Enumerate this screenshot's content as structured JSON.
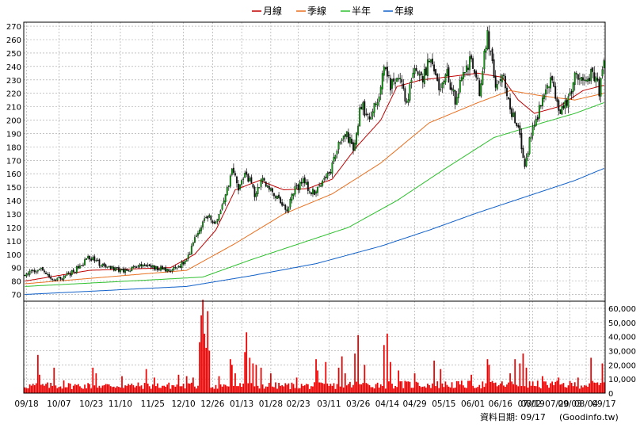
{
  "chart_data": [
    {
      "type": "candlestick",
      "legend_position": "top-center",
      "legend": [
        {
          "name": "月線",
          "color": "#c00000"
        },
        {
          "name": "季線",
          "color": "#e87020"
        },
        {
          "name": "半年",
          "color": "#2ec02e"
        },
        {
          "name": "年線",
          "color": "#1060c8"
        }
      ],
      "y_ticks": [
        70,
        80,
        90,
        100,
        110,
        120,
        130,
        140,
        150,
        160,
        170,
        180,
        190,
        200,
        210,
        220,
        230,
        240,
        250,
        260,
        270
      ],
      "ylim": [
        65,
        273
      ],
      "grid": true,
      "price_anchors": [
        {
          "t": 0,
          "p": 85
        },
        {
          "t": 10,
          "p": 89
        },
        {
          "t": 18,
          "p": 80
        },
        {
          "t": 30,
          "p": 87
        },
        {
          "t": 40,
          "p": 98
        },
        {
          "t": 50,
          "p": 90
        },
        {
          "t": 62,
          "p": 88
        },
        {
          "t": 75,
          "p": 92
        },
        {
          "t": 90,
          "p": 87
        },
        {
          "t": 100,
          "p": 95
        },
        {
          "t": 108,
          "p": 120
        },
        {
          "t": 113,
          "p": 128
        },
        {
          "t": 118,
          "p": 122
        },
        {
          "t": 123,
          "p": 138
        },
        {
          "t": 128,
          "p": 162
        },
        {
          "t": 132,
          "p": 150
        },
        {
          "t": 137,
          "p": 160
        },
        {
          "t": 142,
          "p": 145
        },
        {
          "t": 147,
          "p": 157
        },
        {
          "t": 152,
          "p": 148
        },
        {
          "t": 157,
          "p": 142
        },
        {
          "t": 162,
          "p": 133
        },
        {
          "t": 167,
          "p": 148
        },
        {
          "t": 172,
          "p": 155
        },
        {
          "t": 177,
          "p": 145
        },
        {
          "t": 183,
          "p": 150
        },
        {
          "t": 188,
          "p": 160
        },
        {
          "t": 193,
          "p": 178
        },
        {
          "t": 198,
          "p": 190
        },
        {
          "t": 203,
          "p": 180
        },
        {
          "t": 208,
          "p": 212
        },
        {
          "t": 213,
          "p": 200
        },
        {
          "t": 218,
          "p": 215
        },
        {
          "t": 222,
          "p": 240
        },
        {
          "t": 226,
          "p": 225
        },
        {
          "t": 231,
          "p": 232
        },
        {
          "t": 236,
          "p": 212
        },
        {
          "t": 241,
          "p": 238
        },
        {
          "t": 246,
          "p": 230
        },
        {
          "t": 251,
          "p": 250
        },
        {
          "t": 256,
          "p": 220
        },
        {
          "t": 261,
          "p": 235
        },
        {
          "t": 266,
          "p": 215
        },
        {
          "t": 271,
          "p": 238
        },
        {
          "t": 276,
          "p": 245
        },
        {
          "t": 281,
          "p": 222
        },
        {
          "t": 286,
          "p": 265
        },
        {
          "t": 291,
          "p": 225
        },
        {
          "t": 296,
          "p": 232
        },
        {
          "t": 301,
          "p": 205
        },
        {
          "t": 306,
          "p": 190
        },
        {
          "t": 309,
          "p": 165
        },
        {
          "t": 312,
          "p": 185
        },
        {
          "t": 316,
          "p": 200
        },
        {
          "t": 321,
          "p": 222
        },
        {
          "t": 326,
          "p": 230
        },
        {
          "t": 331,
          "p": 205
        },
        {
          "t": 336,
          "p": 215
        },
        {
          "t": 341,
          "p": 235
        },
        {
          "t": 346,
          "p": 228
        },
        {
          "t": 351,
          "p": 237
        },
        {
          "t": 355,
          "p": 222
        },
        {
          "t": 358,
          "p": 240
        }
      ],
      "ma_anchors": {
        "月線": [
          {
            "t": 0,
            "p": 80
          },
          {
            "t": 40,
            "p": 88
          },
          {
            "t": 90,
            "p": 90
          },
          {
            "t": 105,
            "p": 100
          },
          {
            "t": 118,
            "p": 118
          },
          {
            "t": 130,
            "p": 148
          },
          {
            "t": 145,
            "p": 155
          },
          {
            "t": 160,
            "p": 148
          },
          {
            "t": 175,
            "p": 149
          },
          {
            "t": 190,
            "p": 156
          },
          {
            "t": 205,
            "p": 180
          },
          {
            "t": 220,
            "p": 200
          },
          {
            "t": 230,
            "p": 225
          },
          {
            "t": 245,
            "p": 230
          },
          {
            "t": 260,
            "p": 232
          },
          {
            "t": 280,
            "p": 235
          },
          {
            "t": 295,
            "p": 232
          },
          {
            "t": 305,
            "p": 215
          },
          {
            "t": 315,
            "p": 205
          },
          {
            "t": 330,
            "p": 210
          },
          {
            "t": 345,
            "p": 222
          },
          {
            "t": 358,
            "p": 226
          }
        ],
        "季線": [
          {
            "t": 0,
            "p": 78
          },
          {
            "t": 60,
            "p": 84
          },
          {
            "t": 100,
            "p": 88
          },
          {
            "t": 130,
            "p": 108
          },
          {
            "t": 160,
            "p": 130
          },
          {
            "t": 190,
            "p": 145
          },
          {
            "t": 220,
            "p": 168
          },
          {
            "t": 250,
            "p": 198
          },
          {
            "t": 280,
            "p": 213
          },
          {
            "t": 300,
            "p": 222
          },
          {
            "t": 320,
            "p": 218
          },
          {
            "t": 340,
            "p": 215
          },
          {
            "t": 358,
            "p": 220
          }
        ],
        "半年": [
          {
            "t": 0,
            "p": 76
          },
          {
            "t": 80,
            "p": 81
          },
          {
            "t": 110,
            "p": 83
          },
          {
            "t": 140,
            "p": 96
          },
          {
            "t": 170,
            "p": 108
          },
          {
            "t": 200,
            "p": 120
          },
          {
            "t": 230,
            "p": 140
          },
          {
            "t": 260,
            "p": 164
          },
          {
            "t": 290,
            "p": 187
          },
          {
            "t": 320,
            "p": 198
          },
          {
            "t": 340,
            "p": 205
          },
          {
            "t": 358,
            "p": 213
          }
        ],
        "年線": [
          {
            "t": 0,
            "p": 70
          },
          {
            "t": 100,
            "p": 76
          },
          {
            "t": 140,
            "p": 84
          },
          {
            "t": 180,
            "p": 93
          },
          {
            "t": 220,
            "p": 106
          },
          {
            "t": 250,
            "p": 118
          },
          {
            "t": 280,
            "p": 131
          },
          {
            "t": 310,
            "p": 143
          },
          {
            "t": 340,
            "p": 155
          },
          {
            "t": 358,
            "p": 164
          }
        ]
      }
    },
    {
      "type": "bar",
      "name": "volume",
      "y_ticks": [
        0,
        10000,
        20000,
        30000,
        40000,
        50000,
        60000
      ],
      "y_tick_labels": [
        "0",
        "10,000",
        "20,000",
        "30,000",
        "40,000",
        "50,000",
        "60,000"
      ],
      "ylim": [
        0,
        65000
      ],
      "grid": true,
      "base_level": 5500,
      "spikes": [
        {
          "t": 8,
          "v": 27000
        },
        {
          "t": 9,
          "v": 13000
        },
        {
          "t": 18,
          "v": 18000
        },
        {
          "t": 24,
          "v": 9000
        },
        {
          "t": 42,
          "v": 18000
        },
        {
          "t": 44,
          "v": 14000
        },
        {
          "t": 60,
          "v": 12000
        },
        {
          "t": 75,
          "v": 17000
        },
        {
          "t": 80,
          "v": 11000
        },
        {
          "t": 95,
          "v": 13000
        },
        {
          "t": 100,
          "v": 12000
        },
        {
          "t": 104,
          "v": 11000
        },
        {
          "t": 108,
          "v": 36000
        },
        {
          "t": 109,
          "v": 55000
        },
        {
          "t": 110,
          "v": 66000
        },
        {
          "t": 111,
          "v": 42000
        },
        {
          "t": 112,
          "v": 32000
        },
        {
          "t": 113,
          "v": 58000
        },
        {
          "t": 114,
          "v": 30000
        },
        {
          "t": 120,
          "v": 12000
        },
        {
          "t": 127,
          "v": 24000
        },
        {
          "t": 128,
          "v": 20000
        },
        {
          "t": 130,
          "v": 14000
        },
        {
          "t": 136,
          "v": 29000
        },
        {
          "t": 137,
          "v": 43000
        },
        {
          "t": 139,
          "v": 25000
        },
        {
          "t": 141,
          "v": 21000
        },
        {
          "t": 143,
          "v": 20000
        },
        {
          "t": 146,
          "v": 18000
        },
        {
          "t": 152,
          "v": 14000
        },
        {
          "t": 168,
          "v": 11000
        },
        {
          "t": 180,
          "v": 24000
        },
        {
          "t": 181,
          "v": 16000
        },
        {
          "t": 186,
          "v": 22000
        },
        {
          "t": 194,
          "v": 18000
        },
        {
          "t": 196,
          "v": 26000
        },
        {
          "t": 198,
          "v": 14000
        },
        {
          "t": 204,
          "v": 28000
        },
        {
          "t": 206,
          "v": 41000
        },
        {
          "t": 210,
          "v": 20000
        },
        {
          "t": 222,
          "v": 34000
        },
        {
          "t": 224,
          "v": 42000
        },
        {
          "t": 226,
          "v": 22000
        },
        {
          "t": 231,
          "v": 16000
        },
        {
          "t": 241,
          "v": 14000
        },
        {
          "t": 253,
          "v": 23000
        },
        {
          "t": 257,
          "v": 17000
        },
        {
          "t": 276,
          "v": 13000
        },
        {
          "t": 286,
          "v": 24000
        },
        {
          "t": 287,
          "v": 20000
        },
        {
          "t": 300,
          "v": 14000
        },
        {
          "t": 303,
          "v": 24000
        },
        {
          "t": 306,
          "v": 21000
        },
        {
          "t": 308,
          "v": 28000
        },
        {
          "t": 310,
          "v": 18000
        },
        {
          "t": 320,
          "v": 12000
        },
        {
          "t": 330,
          "v": 11000
        },
        {
          "t": 342,
          "v": 11000
        },
        {
          "t": 350,
          "v": 25000
        },
        {
          "t": 357,
          "v": 21000
        }
      ]
    }
  ],
  "x_axis": {
    "count": 359,
    "labels": [
      {
        "t": 1,
        "text": "09/18"
      },
      {
        "t": 21,
        "text": "10/07"
      },
      {
        "t": 41,
        "text": "10/23"
      },
      {
        "t": 59,
        "text": "11/10"
      },
      {
        "t": 79,
        "text": "11/25"
      },
      {
        "t": 98,
        "text": "12/10"
      },
      {
        "t": 116,
        "text": "12/26"
      },
      {
        "t": 134,
        "text": "01/13"
      },
      {
        "t": 152,
        "text": "01/28"
      },
      {
        "t": 169,
        "text": "02/23"
      },
      {
        "t": 188,
        "text": "03/11"
      },
      {
        "t": 206,
        "text": "03/26"
      },
      {
        "t": 224,
        "text": "04/14"
      },
      {
        "t": 241,
        "text": "04/29"
      },
      {
        "t": 259,
        "text": "05/15"
      },
      {
        "t": 277,
        "text": "06/01"
      },
      {
        "t": 294,
        "text": "06/16"
      },
      {
        "t": 312,
        "text": "07/02"
      },
      {
        "t": 329,
        "text": "07/20"
      },
      {
        "t": 347,
        "text": "08/04"
      }
    ],
    "extra_labels": [
      "08/19",
      "09/03",
      "09/17"
    ]
  },
  "footer": {
    "date_label": "資料日期: 09/17",
    "source": "(Goodinfo.tw)"
  },
  "colors": {
    "up_candle": "#00a000",
    "down_candle": "#101010",
    "volume_bar": "#ee0000",
    "grid": "#a0a0a0",
    "axis": "#000000"
  }
}
